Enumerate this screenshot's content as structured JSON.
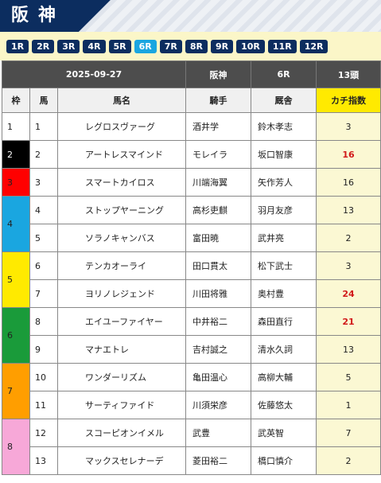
{
  "header": {
    "title": "阪神"
  },
  "races": [
    "1R",
    "2R",
    "3R",
    "4R",
    "5R",
    "6R",
    "7R",
    "8R",
    "9R",
    "10R",
    "11R",
    "12R"
  ],
  "active_race": "6R",
  "info": {
    "date": "2025-09-27",
    "venue": "阪神",
    "race": "6R",
    "runners": "13頭"
  },
  "columns": {
    "waku": "枠",
    "num": "馬",
    "horse": "馬名",
    "jockey": "騎手",
    "trainer": "厩舎",
    "score": "カチ指数"
  },
  "groups": [
    {
      "waku": "1",
      "class": "w1",
      "rows": [
        {
          "num": "1",
          "horse": "レグロスヴァーグ",
          "jockey": "酒井学",
          "trainer": "鈴木孝志",
          "score": "3",
          "hot": false
        }
      ]
    },
    {
      "waku": "2",
      "class": "w2",
      "rows": [
        {
          "num": "2",
          "horse": "アートレスマインド",
          "jockey": "モレイラ",
          "trainer": "坂口智康",
          "score": "16",
          "hot": true
        }
      ]
    },
    {
      "waku": "3",
      "class": "w3",
      "rows": [
        {
          "num": "3",
          "horse": "スマートカイロス",
          "jockey": "川端海翼",
          "trainer": "矢作芳人",
          "score": "16",
          "hot": false
        }
      ]
    },
    {
      "waku": "4",
      "class": "w4",
      "rows": [
        {
          "num": "4",
          "horse": "ストップヤーニング",
          "jockey": "高杉吏麒",
          "trainer": "羽月友彦",
          "score": "13",
          "hot": false
        },
        {
          "num": "5",
          "horse": "ソラノキャンバス",
          "jockey": "富田暁",
          "trainer": "武井亮",
          "score": "2",
          "hot": false
        }
      ]
    },
    {
      "waku": "5",
      "class": "w5",
      "rows": [
        {
          "num": "6",
          "horse": "テンカオーライ",
          "jockey": "田口貫太",
          "trainer": "松下武士",
          "score": "3",
          "hot": false
        },
        {
          "num": "7",
          "horse": "ヨリノレジェンド",
          "jockey": "川田将雅",
          "trainer": "奥村豊",
          "score": "24",
          "hot": true
        }
      ]
    },
    {
      "waku": "6",
      "class": "w6",
      "rows": [
        {
          "num": "8",
          "horse": "エイユーファイヤー",
          "jockey": "中井裕二",
          "trainer": "森田直行",
          "score": "21",
          "hot": true
        },
        {
          "num": "9",
          "horse": "マナエトレ",
          "jockey": "吉村誠之",
          "trainer": "清水久詞",
          "score": "13",
          "hot": false
        }
      ]
    },
    {
      "waku": "7",
      "class": "w7",
      "rows": [
        {
          "num": "10",
          "horse": "ワンダーリズム",
          "jockey": "亀田温心",
          "trainer": "高柳大輔",
          "score": "5",
          "hot": false
        },
        {
          "num": "11",
          "horse": "サーティファイド",
          "jockey": "川須栄彦",
          "trainer": "佐藤悠太",
          "score": "1",
          "hot": false
        }
      ]
    },
    {
      "waku": "8",
      "class": "w8",
      "rows": [
        {
          "num": "12",
          "horse": "スコーピオンイメル",
          "jockey": "武豊",
          "trainer": "武英智",
          "score": "7",
          "hot": false
        },
        {
          "num": "13",
          "horse": "マックスセレナーデ",
          "jockey": "菱田裕二",
          "trainer": "橋口慎介",
          "score": "2",
          "hot": false
        }
      ]
    }
  ]
}
